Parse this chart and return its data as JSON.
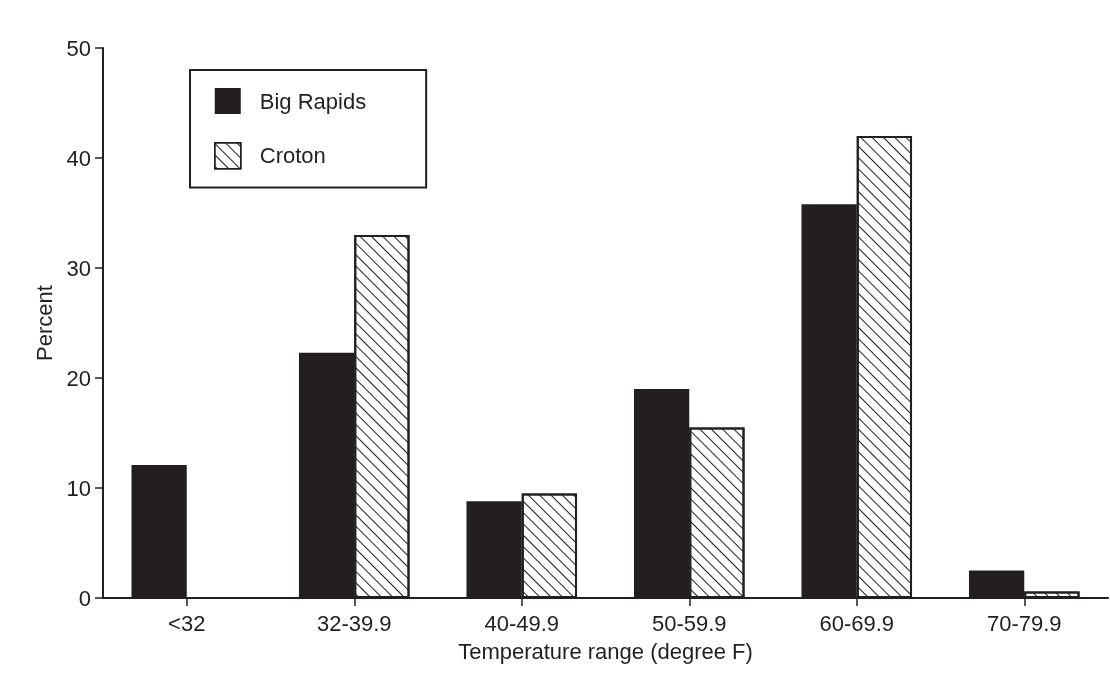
{
  "chart_data": {
    "type": "bar",
    "xlabel": "Temperature range (degree F)",
    "ylabel": "Percent",
    "categories": [
      "<32",
      "32-39.9",
      "40-49.9",
      "50-59.9",
      "60-69.9",
      "70-79.9"
    ],
    "series": [
      {
        "name": "Big Rapids",
        "color": "#231f20",
        "values": [
          12.1,
          22.3,
          8.8,
          19.0,
          35.8,
          2.5
        ]
      },
      {
        "name": "Croton",
        "color": "#ffffff",
        "values": [
          0,
          33.0,
          9.5,
          15.5,
          42.0,
          0.6
        ]
      }
    ],
    "ylim": [
      0,
      50
    ],
    "yticks": [
      0,
      10,
      20,
      30,
      40,
      50
    ],
    "grid": false,
    "legend": "top left"
  }
}
